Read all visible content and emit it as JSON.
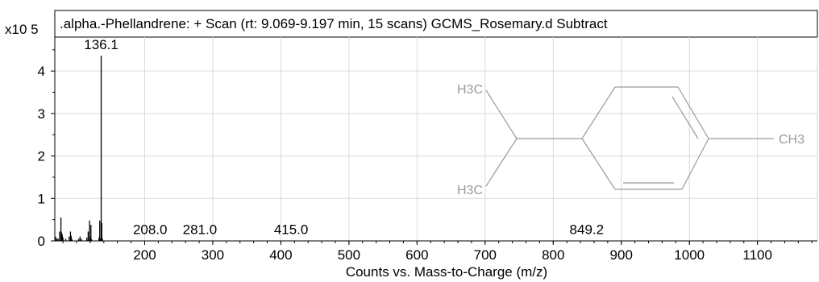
{
  "chart_data": {
    "type": "bar",
    "title": ".alpha.-Phellandrene: + Scan (rt: 9.069-9.197 min, 15 scans) GCMS_Rosemary.d  Subtract",
    "xlabel": "Counts vs. Mass-to-Charge (m/z)",
    "ylabel": "",
    "y_multiplier": "x10 5",
    "xlim": [
      68,
      1188
    ],
    "ylim": [
      0,
      4.8
    ],
    "x_ticks": [
      200,
      300,
      400,
      500,
      600,
      700,
      800,
      900,
      1000,
      1100
    ],
    "y_ticks": [
      0,
      1,
      2,
      3,
      4
    ],
    "grid": true,
    "peaks": [
      {
        "mz": 69,
        "intensity": 0.1
      },
      {
        "mz": 71,
        "intensity": 0.06
      },
      {
        "mz": 73,
        "intensity": 0.05
      },
      {
        "mz": 75,
        "intensity": 0.22
      },
      {
        "mz": 77,
        "intensity": 0.55
      },
      {
        "mz": 78,
        "intensity": 0.2
      },
      {
        "mz": 79,
        "intensity": 0.15
      },
      {
        "mz": 80,
        "intensity": 0.08
      },
      {
        "mz": 84,
        "intensity": 0.05
      },
      {
        "mz": 89,
        "intensity": 0.1
      },
      {
        "mz": 91,
        "intensity": 0.22
      },
      {
        "mz": 92,
        "intensity": 0.12
      },
      {
        "mz": 93,
        "intensity": 0.05
      },
      {
        "mz": 103,
        "intensity": 0.05
      },
      {
        "mz": 105,
        "intensity": 0.1
      },
      {
        "mz": 107,
        "intensity": 0.05
      },
      {
        "mz": 115,
        "intensity": 0.08
      },
      {
        "mz": 117,
        "intensity": 0.22
      },
      {
        "mz": 119,
        "intensity": 0.48
      },
      {
        "mz": 120,
        "intensity": 0.1
      },
      {
        "mz": 121,
        "intensity": 0.38
      },
      {
        "mz": 122,
        "intensity": 0.04
      },
      {
        "mz": 133,
        "intensity": 0.08
      },
      {
        "mz": 134,
        "intensity": 0.48
      },
      {
        "mz": 135,
        "intensity": 0.05
      },
      {
        "mz": 136.1,
        "intensity": 4.36
      },
      {
        "mz": 137,
        "intensity": 0.42
      },
      {
        "mz": 138,
        "intensity": 0.05
      },
      {
        "mz": 208.0,
        "intensity": 0.01
      },
      {
        "mz": 281.0,
        "intensity": 0.01
      },
      {
        "mz": 415.0,
        "intensity": 0.01
      },
      {
        "mz": 849.2,
        "intensity": 0.01
      }
    ],
    "peak_labels": [
      {
        "text": "136.1",
        "mz": 136.1,
        "intensity": 4.36
      },
      {
        "text": "208.0",
        "mz": 208.0,
        "intensity": 0.01
      },
      {
        "text": "281.0",
        "mz": 281.0,
        "intensity": 0.01
      },
      {
        "text": "415.0",
        "mz": 415.0,
        "intensity": 0.01
      },
      {
        "text": "849.2",
        "mz": 849.2,
        "intensity": 0.01
      }
    ],
    "structure_labels": {
      "top_left": "H3C",
      "bottom_left": "H3C",
      "right": "CH3"
    },
    "colors": {
      "peaks": "#000000",
      "grid": "#d9d9d9",
      "structure": "#9a9a9a"
    }
  }
}
